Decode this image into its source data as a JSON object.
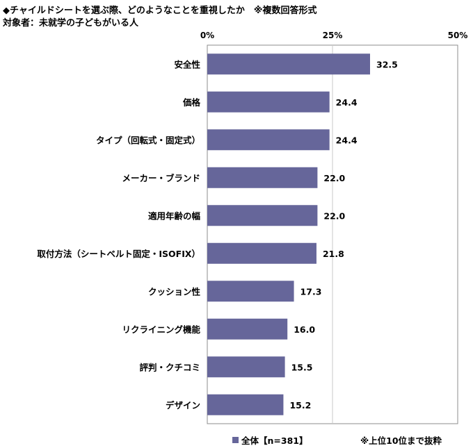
{
  "header": {
    "title": "◆チャイルドシートを選ぶ際、どのようなことを重視したか　※複数回答形式",
    "subtitle": "対象者：未就学の子どもがいる人"
  },
  "legend": {
    "label": "全体【n=381】"
  },
  "note": "※上位10位まで抜粋",
  "colors": {
    "bar": "#66669a",
    "grid": "#c8c8c8",
    "axis": "#8c8c8c"
  },
  "chart_data": {
    "type": "bar",
    "orientation": "horizontal",
    "categories": [
      "安全性",
      "価格",
      "タイプ（回転式・固定式）",
      "メーカー・ブランド",
      "適用年齢の幅",
      "取付方法（シートベルト固定・ISOFIX）",
      "クッション性",
      "リクライニング機能",
      "評判・クチコミ",
      "デザイン"
    ],
    "series": [
      {
        "name": "全体【n=381】",
        "values": [
          32.5,
          24.4,
          24.4,
          22.0,
          22.0,
          21.8,
          17.3,
          16.0,
          15.5,
          15.2
        ]
      }
    ],
    "value_labels": [
      "32.5",
      "24.4",
      "24.4",
      "22.0",
      "22.0",
      "21.8",
      "17.3",
      "16.0",
      "15.5",
      "15.2"
    ],
    "xlim": [
      0,
      50
    ],
    "xticks": [
      0,
      25,
      50
    ],
    "xtick_labels": [
      "0%",
      "25%",
      "50%"
    ],
    "grid": true,
    "legend_position": "bottom"
  }
}
